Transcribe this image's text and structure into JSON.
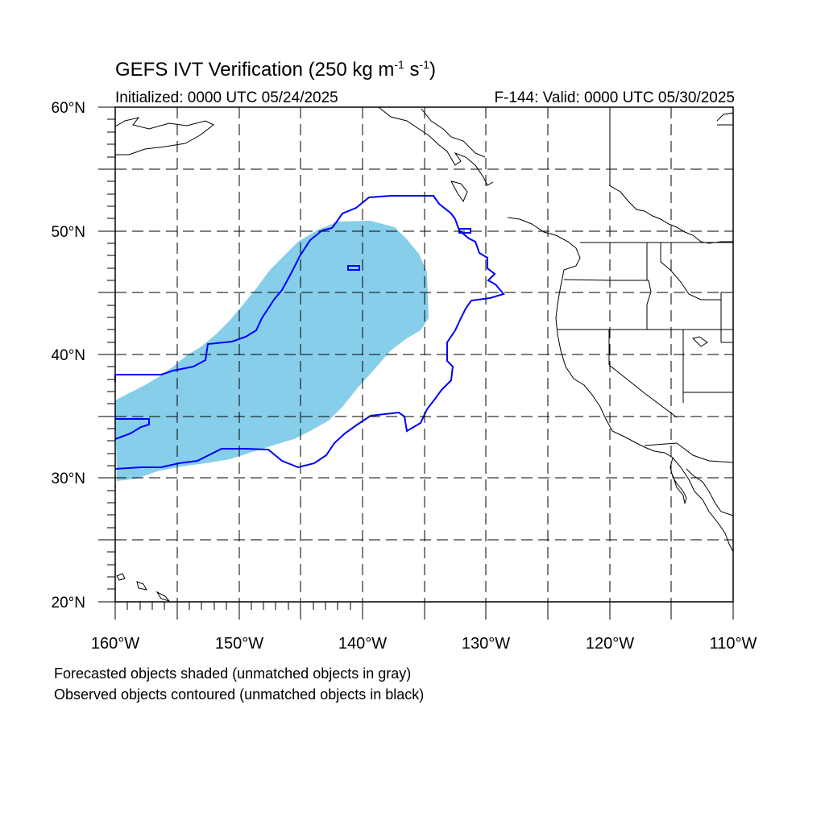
{
  "title": {
    "main": "GEFS IVT Verification (250 kg m",
    "unit_m_exp": "-1",
    "unit_s": " s",
    "unit_s_exp": "-1",
    "close": ")"
  },
  "initialized": "Initialized: 0000 UTC 05/24/2025",
  "valid": "F-144: Valid: 0000 UTC 05/30/2025",
  "map": {
    "lon_range": [
      -160,
      -110
    ],
    "lat_range": [
      20,
      60
    ],
    "lat_ticks": [
      "60°N",
      "50°N",
      "40°N",
      "30°N",
      "20°N"
    ],
    "lon_ticks": [
      "160°W",
      "150°W",
      "140°W",
      "130°W",
      "120°W",
      "110°W"
    ],
    "forecast_color": "#87ceeb",
    "observed_color": "#0000ff",
    "grid_style": "dashed"
  },
  "legend": {
    "line1": "Forecasted objects shaded (unmatched objects in gray)",
    "line2": "Observed objects contoured (unmatched objects in black)"
  }
}
